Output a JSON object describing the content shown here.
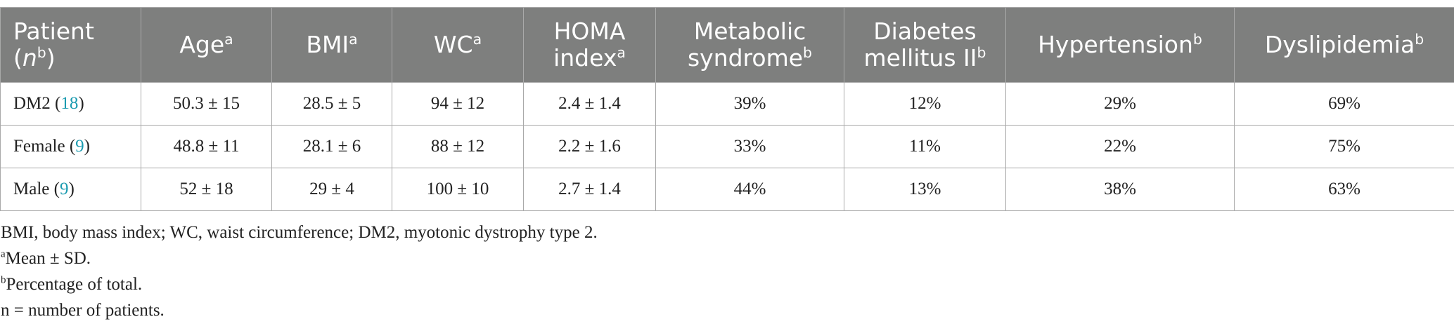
{
  "table": {
    "headers": [
      {
        "text": "Patient (",
        "italic": "n",
        "tail": ")",
        "sup": "b"
      },
      {
        "text": "Age",
        "sup": "a"
      },
      {
        "text": "BMI",
        "sup": "a"
      },
      {
        "text": "WC",
        "sup": "a"
      },
      {
        "text": "HOMA index",
        "sup": "a"
      },
      {
        "text": "Metabolic syndrome",
        "sup": "b"
      },
      {
        "text": "Diabetes mellitus II",
        "sup": "b"
      },
      {
        "text": "Hypertension",
        "sup": "b"
      },
      {
        "text": "Dyslipidemia",
        "sup": "b"
      }
    ],
    "rows": [
      {
        "group": "DM2",
        "n": "18",
        "values": [
          "50.3 ± 15",
          "28.5 ± 5",
          "94 ± 12",
          "2.4 ± 1.4",
          "39%",
          "12%",
          "29%",
          "69%"
        ]
      },
      {
        "group": "Female",
        "n": "9",
        "values": [
          "48.8 ± 11",
          "28.1 ± 6",
          "88 ± 12",
          "2.2 ± 1.6",
          "33%",
          "11%",
          "22%",
          "75%"
        ]
      },
      {
        "group": "Male",
        "n": "9",
        "values": [
          "52 ± 18",
          "29 ± 4",
          "100 ± 10",
          "2.7 ± 1.4",
          "44%",
          "13%",
          "38%",
          "63%"
        ]
      }
    ]
  },
  "footnotes": {
    "abbreviations": "BMI, body mass index; WC, waist circumference; DM2, myotonic dystrophy type 2.",
    "a_mark": "a",
    "a_text": "Mean ± SD.",
    "b_mark": "b",
    "b_text": "Percentage of total.",
    "n_note": "n = number of patients."
  },
  "colors": {
    "header_bg": "#7e7f7e",
    "header_text": "#ffffff",
    "grid": "#a9a9a9",
    "link": "#1b9bb0"
  }
}
